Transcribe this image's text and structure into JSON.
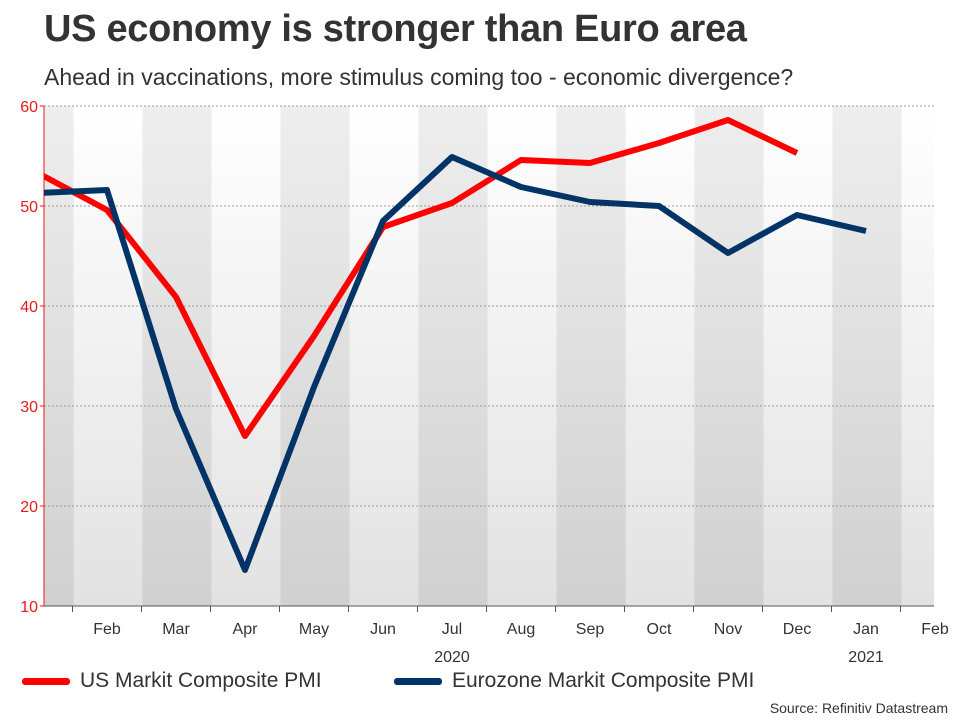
{
  "header": {
    "title": "US economy is stronger than Euro area",
    "subtitle": "Ahead in vaccinations, more stimulus coming too - economic divergence?"
  },
  "legend": {
    "us_label": "US Markit Composite PMI",
    "eu_label": "Eurozone Markit Composite PMI"
  },
  "source": "Source: Refinitiv Datastream",
  "colors": {
    "us": "#ff0000",
    "eu": "#003366",
    "axis_text": "#e41a1c",
    "band_dark": "#d0d0d0",
    "band_light": "#ffffff"
  },
  "chart_data": {
    "type": "line",
    "x": [
      "2020-01",
      "2020-02",
      "2020-03",
      "2020-04",
      "2020-05",
      "2020-06",
      "2020-07",
      "2020-08",
      "2020-09",
      "2020-10",
      "2020-11",
      "2020-12",
      "2021-01"
    ],
    "series": [
      {
        "name": "US Markit Composite PMI",
        "values": [
          53.3,
          49.6,
          40.9,
          27.0,
          37.0,
          47.9,
          50.3,
          54.6,
          54.3,
          56.3,
          58.6,
          55.3,
          null
        ]
      },
      {
        "name": "Eurozone Markit Composite PMI",
        "values": [
          51.3,
          51.6,
          29.7,
          13.6,
          31.9,
          48.5,
          54.9,
          51.9,
          50.4,
          50.0,
          45.3,
          49.1,
          47.5
        ]
      }
    ],
    "x_tick_labels": [
      "Feb",
      "Mar",
      "Apr",
      "May",
      "Jun",
      "Jul",
      "Aug",
      "Sep",
      "Oct",
      "Nov",
      "Dec",
      "Jan",
      "Feb"
    ],
    "year_labels": [
      "2020",
      "2021"
    ],
    "y_ticks": [
      "10",
      "20",
      "30",
      "40",
      "50",
      "60"
    ],
    "ylim": [
      10,
      60
    ],
    "grid": true,
    "legend_position": "bottom"
  }
}
